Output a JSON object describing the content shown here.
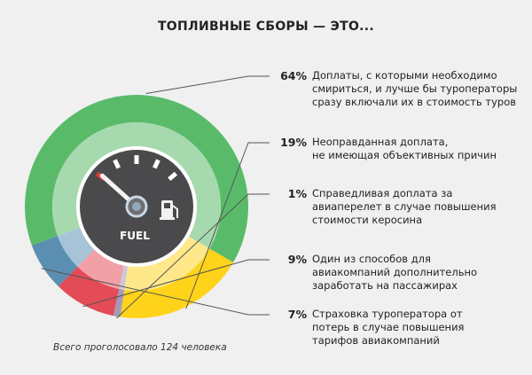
{
  "chart_data": {
    "type": "pie",
    "title": "ТОПЛИВНЫЕ СБОРЫ — ЭТО...",
    "categories": [
      "Доплаты, с которыми необходимо смириться, и лучше бы туроператоры сразу включали их в стоимость туров",
      "Неоправданная доплата, не имеющая объективных причин",
      "Справедливая доплата за авиаперелет в случае повышения стоимости керосина",
      "Один из способов для авиакомпаний дополнительно заработать на пассажирах",
      "Страховка туроператора от потерь в случае повышения тарифов авиакомпаний"
    ],
    "labels": [
      "Доплаты, с которыми необходимо\nсмириться, и лучше бы туроператоры\nсразу включали их в стоимость туров",
      "Неоправданная доплата,\nне имеющая объективных причин",
      "Справедливая доплата за\nавиаперелет в случае повышения\nстоимости керосина",
      "Один из способов для\nавиакомпаний дополнительно\nзаработать на пассажирах",
      "Страховка туроператора от\nпотерь в случае повышения\nтарифов авиакомпаний"
    ],
    "values": [
      64,
      19,
      1,
      9,
      7
    ],
    "value_labels": [
      "64%",
      "19%",
      "1%",
      "9%",
      "7%"
    ],
    "colors": [
      "#59bb6a",
      "#ffd319",
      "#a39ab8",
      "#e34b57",
      "#5b8fb2"
    ],
    "light_colors": [
      "#a6daae",
      "#ffe889",
      "#cdc8d9",
      "#f2a0a8",
      "#a6c3d8"
    ],
    "legend_placement": "right"
  },
  "gauge": {
    "label": "FUEL",
    "icon": "fuel-pump-icon",
    "needle_level": 0.1
  },
  "footnote": "Всего проголосовало 124 человека"
}
